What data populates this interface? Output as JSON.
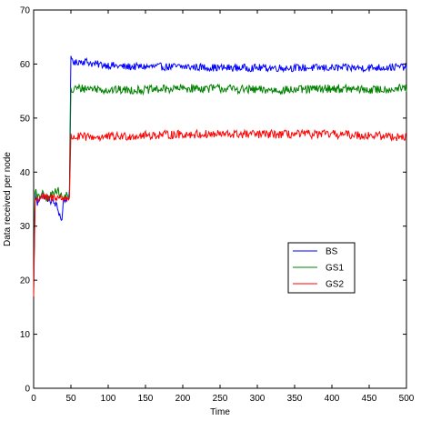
{
  "chart_data": {
    "type": "line",
    "title": "",
    "xlabel": "Time",
    "ylabel": "Data received per node",
    "xlim": [
      0,
      500
    ],
    "ylim": [
      0,
      70
    ],
    "xticks": [
      0,
      50,
      100,
      150,
      200,
      250,
      300,
      350,
      400,
      450,
      500
    ],
    "yticks": [
      0,
      10,
      20,
      30,
      40,
      50,
      60,
      70
    ],
    "grid": false,
    "legend_position": "center-right",
    "series": [
      {
        "name": "BS",
        "color": "#0000ff",
        "x": [
          0,
          2,
          5,
          10,
          20,
          30,
          38,
          40,
          45,
          48,
          50,
          52,
          55,
          60,
          70,
          80,
          100,
          120,
          150,
          200,
          250,
          300,
          350,
          400,
          450,
          500
        ],
        "values": [
          19,
          36,
          34,
          36,
          35,
          34,
          31,
          35,
          35,
          36,
          61,
          61,
          60,
          60.5,
          60.5,
          60,
          59.8,
          59.5,
          59.5,
          59.5,
          59.3,
          59.3,
          59.3,
          59.3,
          59.3,
          59.5
        ],
        "noise": 0.7
      },
      {
        "name": "GS1",
        "color": "#008000",
        "x": [
          0,
          2,
          5,
          10,
          20,
          30,
          40,
          45,
          48,
          50,
          52,
          55,
          60,
          80,
          100,
          150,
          200,
          250,
          300,
          350,
          400,
          450,
          500
        ],
        "values": [
          18,
          37,
          35,
          36,
          35,
          37,
          35,
          36,
          35,
          55,
          55,
          55.5,
          55.5,
          55.5,
          55.2,
          55.2,
          55.5,
          55.5,
          55.2,
          55.2,
          55.5,
          55.2,
          55.5
        ],
        "noise": 0.8
      },
      {
        "name": "GS2",
        "color": "#ff0000",
        "x": [
          0,
          2,
          5,
          10,
          20,
          30,
          40,
          45,
          48,
          50,
          52,
          55,
          60,
          80,
          100,
          150,
          200,
          250,
          300,
          350,
          400,
          450,
          500
        ],
        "values": [
          17,
          35,
          35,
          35.5,
          35,
          35.5,
          35,
          35.5,
          35,
          46.5,
          46.5,
          46.5,
          46.5,
          46.5,
          46.5,
          46.8,
          47,
          47,
          47,
          47,
          47,
          46.8,
          46.5
        ],
        "noise": 0.8
      }
    ]
  }
}
